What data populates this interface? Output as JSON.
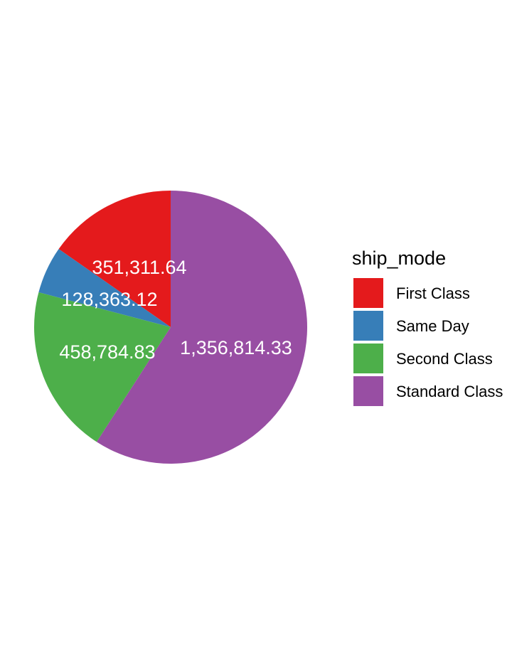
{
  "chart_data": {
    "type": "pie",
    "legend_position": "right",
    "legend": {
      "title": "ship_mode"
    },
    "slices": [
      {
        "category": "First Class",
        "value": 351311.64,
        "label": "351,311.64",
        "color": "#E41A1C"
      },
      {
        "category": "Same Day",
        "value": 128363.12,
        "label": "128,363.12",
        "color": "#377EB8"
      },
      {
        "category": "Second Class",
        "value": 458784.83,
        "label": "458,784.83",
        "color": "#4DAF4A"
      },
      {
        "category": "Standard Class",
        "value": 1356814.33,
        "label": "1,356,814.33",
        "color": "#984EA3"
      }
    ]
  }
}
